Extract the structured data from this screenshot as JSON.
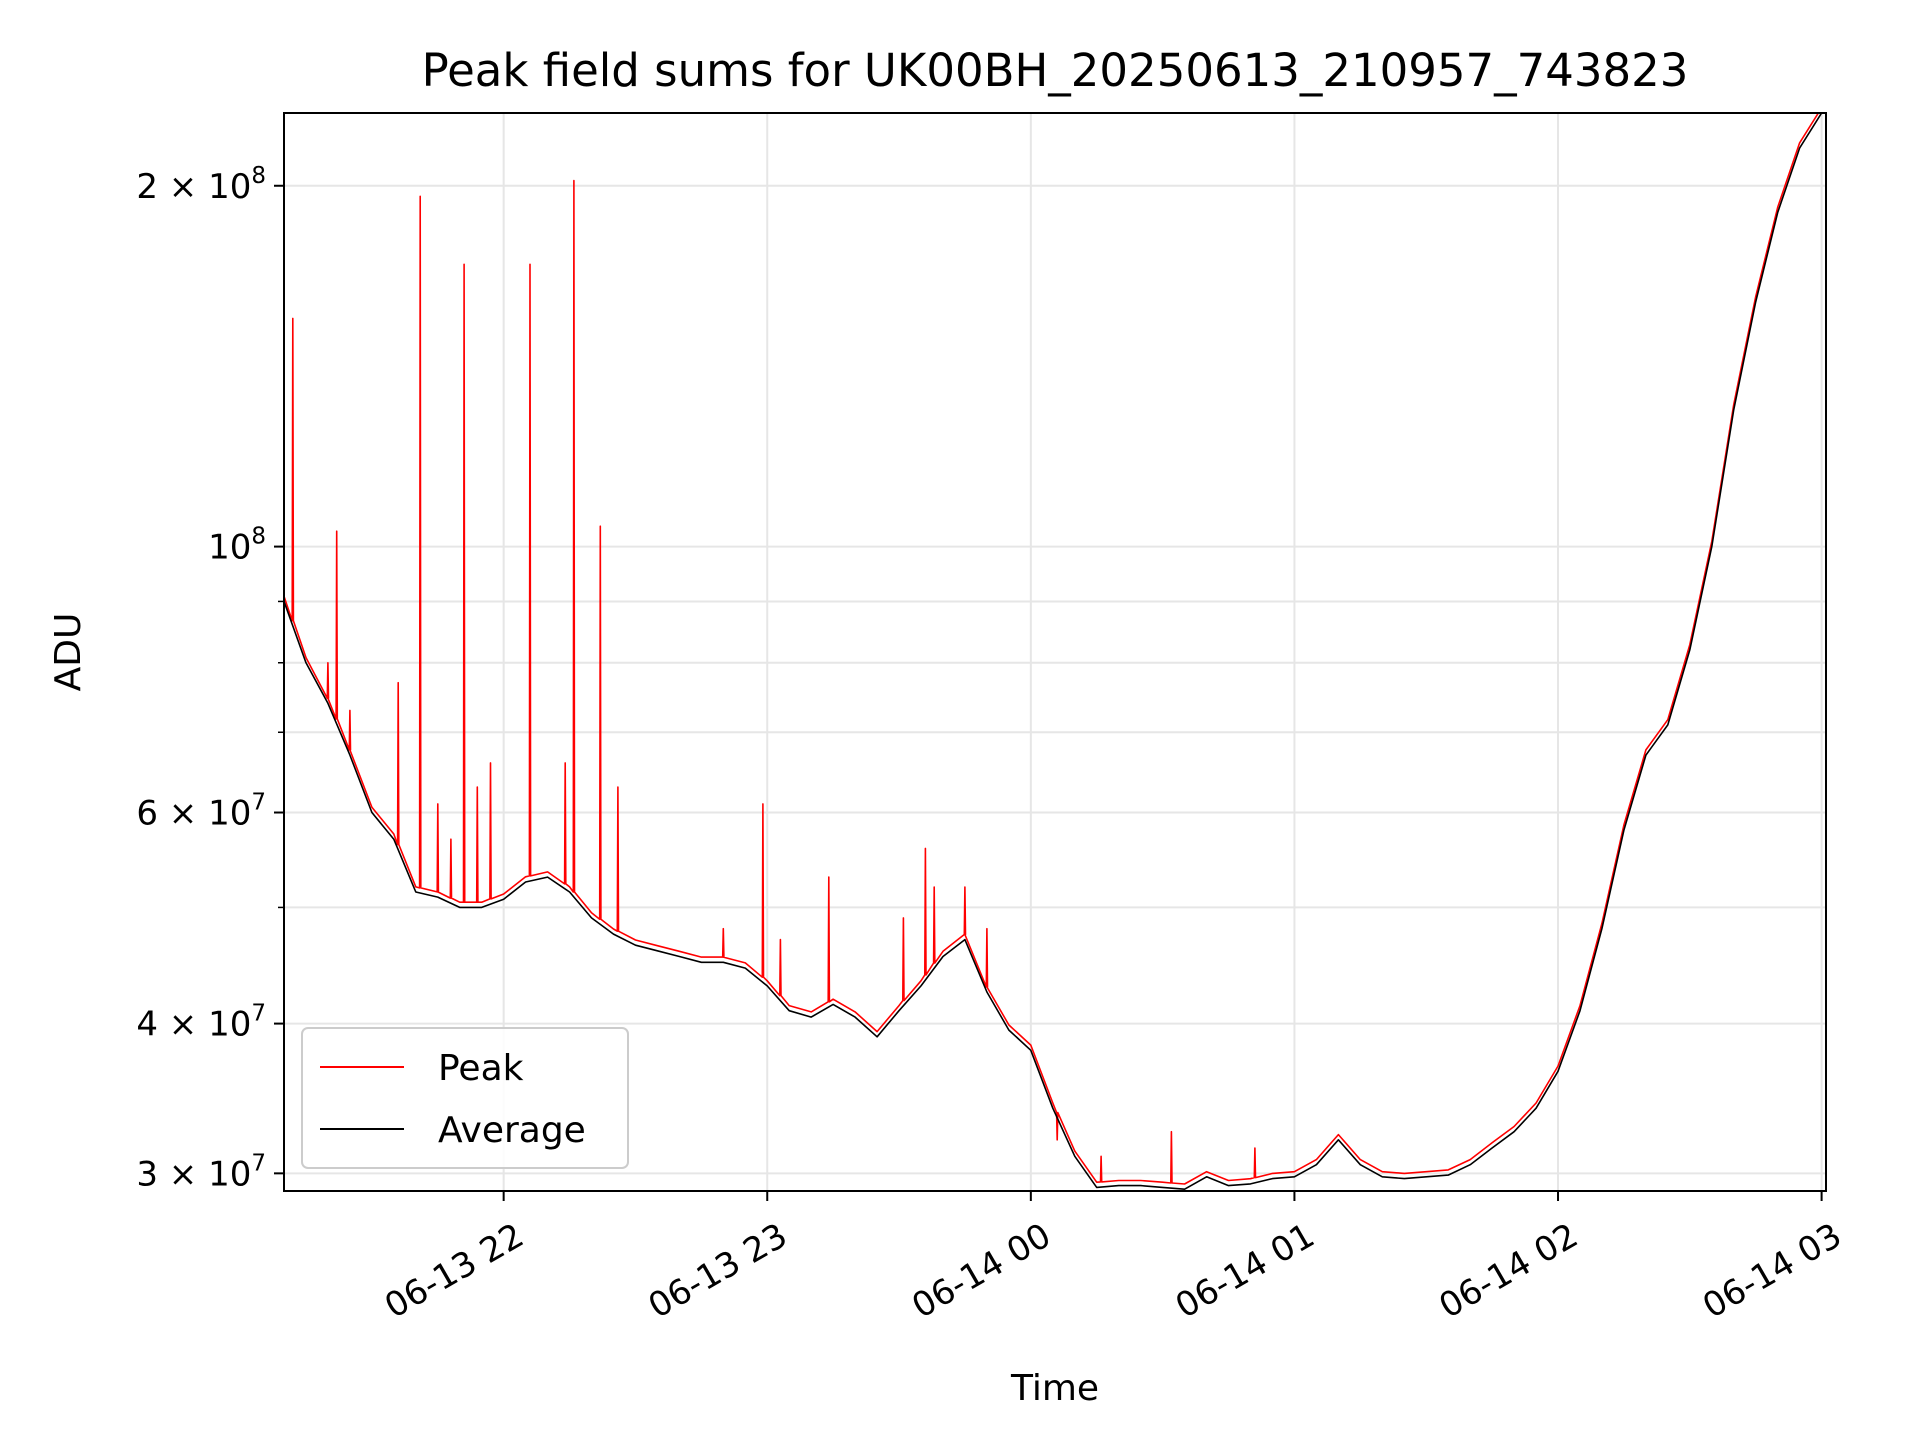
{
  "chart_data": {
    "type": "line",
    "title": "Peak field sums for UK00BH_20250613_210957_743823",
    "xlabel": "Time",
    "ylabel": "ADU",
    "yscale": "log",
    "x_unit": "minutes",
    "x_range": [
      "06-13 21:10",
      "06-14 03:01"
    ],
    "ylim": [
      29000000,
      230000000
    ],
    "grid": true,
    "legend_position": "lower-left",
    "x_ticks": [
      {
        "x": "06-13 22:00",
        "label": "06-13 22"
      },
      {
        "x": "06-13 23:00",
        "label": "06-13 23"
      },
      {
        "x": "06-14 00:00",
        "label": "06-14 00"
      },
      {
        "x": "06-14 01:00",
        "label": "06-14 01"
      },
      {
        "x": "06-14 02:00",
        "label": "06-14 02"
      },
      {
        "x": "06-14 03:00",
        "label": "06-14 03"
      }
    ],
    "y_major_ticks": [
      {
        "value": 30000000,
        "coef": "3",
        "exp": "7"
      },
      {
        "value": 40000000,
        "coef": "4",
        "exp": "7"
      },
      {
        "value": 60000000,
        "coef": "6",
        "exp": "7"
      },
      {
        "value": 100000000,
        "coef": "",
        "exp": "8"
      },
      {
        "value": 200000000,
        "coef": "2",
        "exp": "8"
      }
    ],
    "y_minor_ticks": [
      50000000,
      70000000,
      80000000,
      90000000
    ],
    "series": [
      {
        "name": "Average",
        "color": "#000000",
        "x": [
          "06-13 21:10",
          "06-13 21:15",
          "06-13 21:20",
          "06-13 21:25",
          "06-13 21:30",
          "06-13 21:35",
          "06-13 21:40",
          "06-13 21:45",
          "06-13 21:50",
          "06-13 21:55",
          "06-13 22:00",
          "06-13 22:05",
          "06-13 22:10",
          "06-13 22:15",
          "06-13 22:20",
          "06-13 22:25",
          "06-13 22:30",
          "06-13 22:35",
          "06-13 22:40",
          "06-13 22:45",
          "06-13 22:50",
          "06-13 22:55",
          "06-13 23:00",
          "06-13 23:05",
          "06-13 23:10",
          "06-13 23:15",
          "06-13 23:20",
          "06-13 23:25",
          "06-13 23:30",
          "06-13 23:35",
          "06-13 23:40",
          "06-13 23:45",
          "06-13 23:50",
          "06-13 23:55",
          "06-14 00:00",
          "06-14 00:05",
          "06-14 00:10",
          "06-14 00:15",
          "06-14 00:20",
          "06-14 00:25",
          "06-14 00:30",
          "06-14 00:35",
          "06-14 00:40",
          "06-14 00:45",
          "06-14 00:50",
          "06-14 00:55",
          "06-14 01:00",
          "06-14 01:05",
          "06-14 01:10",
          "06-14 01:15",
          "06-14 01:20",
          "06-14 01:25",
          "06-14 01:30",
          "06-14 01:35",
          "06-14 01:40",
          "06-14 01:45",
          "06-14 01:50",
          "06-14 01:55",
          "06-14 02:00",
          "06-14 02:05",
          "06-14 02:10",
          "06-14 02:15",
          "06-14 02:20",
          "06-14 02:25",
          "06-14 02:30",
          "06-14 02:35",
          "06-14 02:40",
          "06-14 02:45",
          "06-14 02:50",
          "06-14 02:55",
          "06-14 03:00",
          "06-14 03:01"
        ],
        "y": [
          90000000,
          80000000,
          74000000,
          67000000,
          60000000,
          57000000,
          51500000,
          51000000,
          50000000,
          50000000,
          50800000,
          52500000,
          53000000,
          51500000,
          49000000,
          47500000,
          46500000,
          46000000,
          45500000,
          45000000,
          45000000,
          44500000,
          43000000,
          41000000,
          40500000,
          41500000,
          40500000,
          39000000,
          41000000,
          43000000,
          45500000,
          47000000,
          42500000,
          39500000,
          38000000,
          34000000,
          31000000,
          29200000,
          29300000,
          29300000,
          29200000,
          29100000,
          29800000,
          29300000,
          29400000,
          29700000,
          29800000,
          30500000,
          32000000,
          30500000,
          29800000,
          29700000,
          29800000,
          29900000,
          30500000,
          31500000,
          32500000,
          34000000,
          36500000,
          41000000,
          48000000,
          58000000,
          67000000,
          71000000,
          82000000,
          100000000,
          130000000,
          160000000,
          190000000,
          215000000,
          230000000,
          230000000
        ]
      },
      {
        "name": "Peak",
        "color": "#ff0000",
        "spikes": [
          {
            "x": "06-13 21:12",
            "y": 155000000
          },
          {
            "x": "06-13 21:20",
            "y": 80000000
          },
          {
            "x": "06-13 21:22",
            "y": 103000000
          },
          {
            "x": "06-13 21:25",
            "y": 73000000
          },
          {
            "x": "06-13 21:36",
            "y": 77000000
          },
          {
            "x": "06-13 21:41",
            "y": 196000000
          },
          {
            "x": "06-13 21:45",
            "y": 61000000
          },
          {
            "x": "06-13 21:48",
            "y": 57000000
          },
          {
            "x": "06-13 21:51",
            "y": 172000000
          },
          {
            "x": "06-13 21:54",
            "y": 63000000
          },
          {
            "x": "06-13 21:57",
            "y": 66000000
          },
          {
            "x": "06-13 22:06",
            "y": 172000000
          },
          {
            "x": "06-13 22:14",
            "y": 66000000
          },
          {
            "x": "06-13 22:16",
            "y": 202000000
          },
          {
            "x": "06-13 22:22",
            "y": 104000000
          },
          {
            "x": "06-13 22:26",
            "y": 63000000
          },
          {
            "x": "06-13 22:50",
            "y": 48000000
          },
          {
            "x": "06-13 22:59",
            "y": 61000000
          },
          {
            "x": "06-13 23:03",
            "y": 47000000
          },
          {
            "x": "06-13 23:14",
            "y": 53000000
          },
          {
            "x": "06-13 23:31",
            "y": 49000000
          },
          {
            "x": "06-13 23:36",
            "y": 56000000
          },
          {
            "x": "06-13 23:38",
            "y": 52000000
          },
          {
            "x": "06-13 23:45",
            "y": 52000000
          },
          {
            "x": "06-13 23:50",
            "y": 48000000
          },
          {
            "x": "06-14 00:06",
            "y": 32000000
          },
          {
            "x": "06-14 00:16",
            "y": 31000000
          },
          {
            "x": "06-14 00:32",
            "y": 32500000
          },
          {
            "x": "06-14 00:51",
            "y": 31500000
          }
        ]
      }
    ]
  }
}
